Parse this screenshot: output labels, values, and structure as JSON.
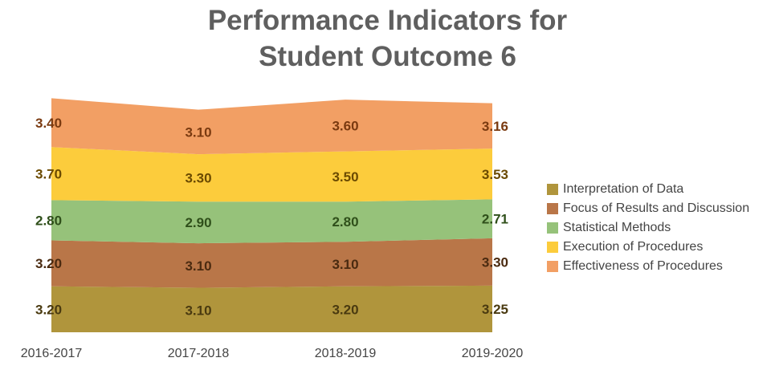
{
  "chart_data": {
    "type": "area",
    "stacked": true,
    "title_line1": "Performance Indicators for",
    "title_line2": "Student Outcome 6",
    "categories": [
      "2016-2017",
      "2017-2018",
      "2018-2019",
      "2019-2020"
    ],
    "series": [
      {
        "name": "Interpretation of Data",
        "values": [
          3.2,
          3.1,
          3.2,
          3.25
        ],
        "labels": [
          "3.20",
          "3.10",
          "3.20",
          "3.25"
        ],
        "color": "#b0953c",
        "label_color": "#4a3a10"
      },
      {
        "name": "Focus of Results and Discussion",
        "values": [
          3.2,
          3.1,
          3.1,
          3.3
        ],
        "labels": [
          "3.20",
          "3.10",
          "3.10",
          "3.30"
        ],
        "color": "#b97648",
        "label_color": "#4a2a10"
      },
      {
        "name": "Statistical Methods",
        "values": [
          2.8,
          2.9,
          2.8,
          2.71
        ],
        "labels": [
          "2.80",
          "2.90",
          "2.80",
          "2.71"
        ],
        "color": "#96c27a",
        "label_color": "#2f4f1a"
      },
      {
        "name": "Execution of Procedures",
        "values": [
          3.7,
          3.3,
          3.5,
          3.53
        ],
        "labels": [
          "3.70",
          "3.30",
          "3.50",
          "3.53"
        ],
        "color": "#fccc3c",
        "label_color": "#6b4a00"
      },
      {
        "name": "Effectiveness of Procedures",
        "values": [
          3.4,
          3.1,
          3.6,
          3.16
        ],
        "labels": [
          "3.40",
          "3.10",
          "3.60",
          "3.16"
        ],
        "color": "#f29f64",
        "label_color": "#7a3a10"
      }
    ],
    "legend_position": "right",
    "grid": false
  }
}
